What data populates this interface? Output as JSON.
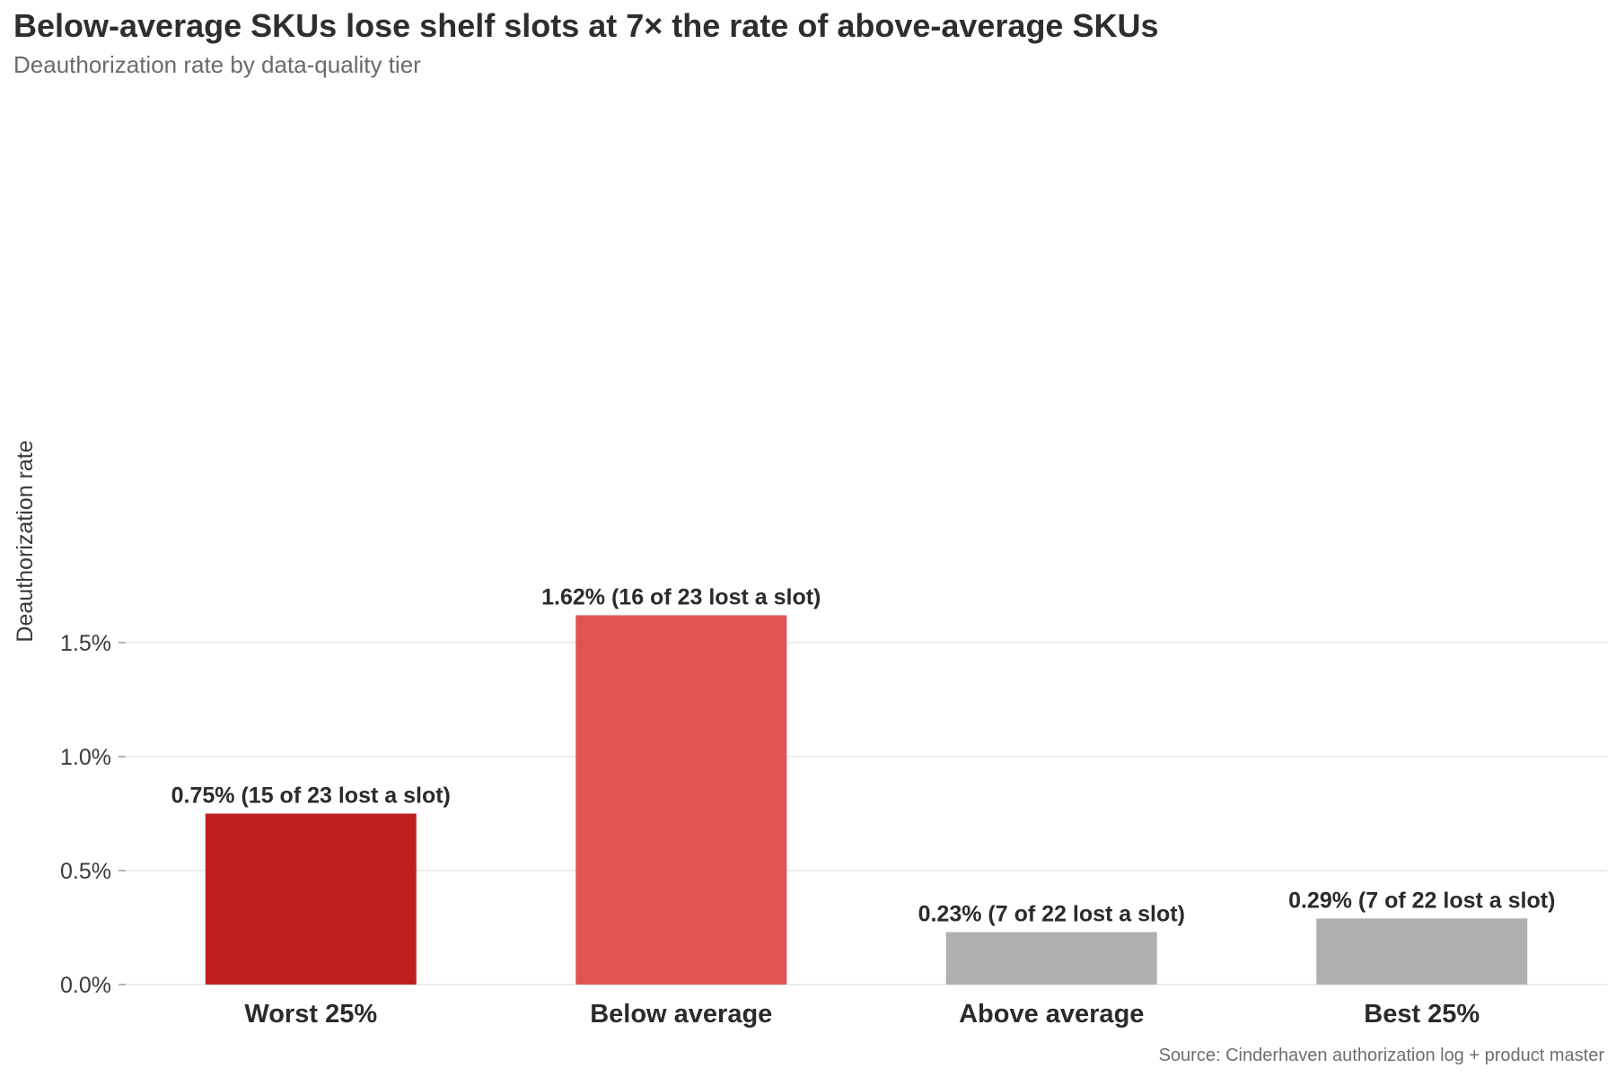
{
  "title": "Below-average SKUs lose shelf slots at 7× the rate of above-average SKUs",
  "subtitle": "Deauthorization rate by data-quality tier",
  "source": "Source: Cinderhaven authorization log + product master",
  "colors": {
    "worst": "#be2020",
    "below": "#e05552",
    "above": "#b0b0b0",
    "best": "#b0b0b0",
    "grid": "#e6e6e6",
    "text": "#2b2b2b"
  },
  "chart_data": {
    "type": "bar",
    "title": "Below-average SKUs lose shelf slots at 7× the rate of above-average SKUs",
    "subtitle": "Deauthorization rate by data-quality tier",
    "xlabel": "",
    "ylabel": "Deauthorization rate",
    "ylim": [
      0,
      1.75
    ],
    "yticks": [
      0.0,
      0.5,
      1.0,
      1.5
    ],
    "ytick_labels": [
      "0.0%",
      "0.5%",
      "1.0%",
      "1.5%"
    ],
    "grid": "horizontal",
    "legend": "none",
    "categories": [
      "Worst 25%",
      "Below average",
      "Above average",
      "Best 25%"
    ],
    "values": [
      0.75,
      1.62,
      0.23,
      0.29
    ],
    "bar_labels": [
      "0.75%  (15 of 23 lost a slot)",
      "1.62%  (16 of 23 lost a slot)",
      "0.23%  (7 of 22 lost a slot)",
      "0.29%  (7 of 22 lost a slot)"
    ],
    "bar_colors": [
      "#be2020",
      "#e05552",
      "#b0b0b0",
      "#b0b0b0"
    ]
  }
}
